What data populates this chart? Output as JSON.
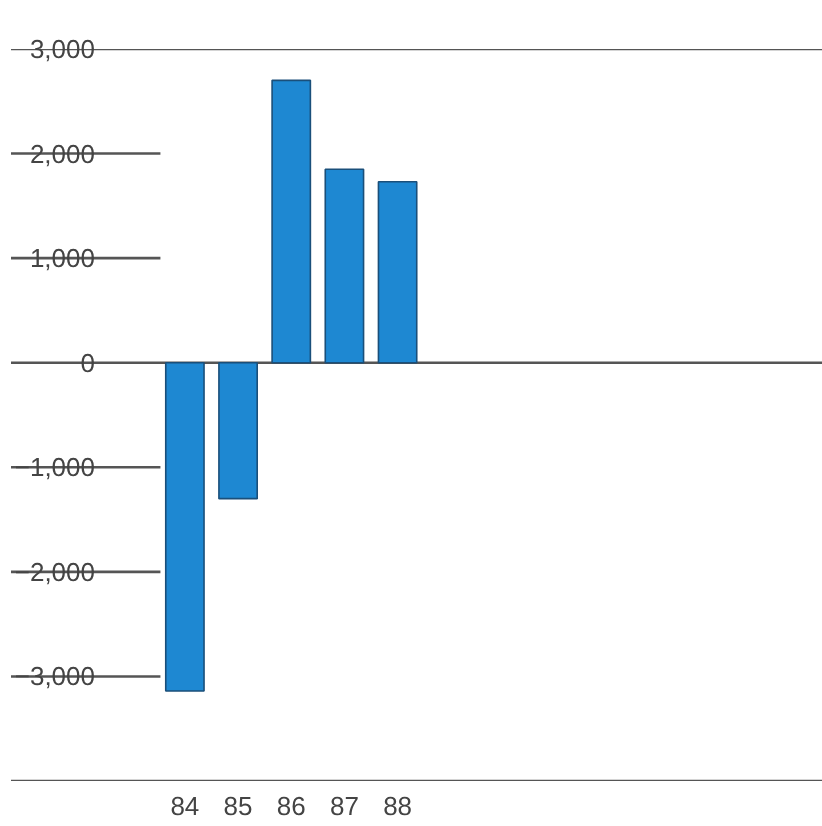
{
  "chart_data": {
    "type": "bar",
    "categories": [
      "84",
      "85",
      "86",
      "87",
      "88"
    ],
    "values": [
      -3140,
      -1300,
      2700,
      1850,
      1730
    ],
    "color": "#1e88d2",
    "ylim": [
      -4000,
      3000
    ],
    "yticks": [
      {
        "value": -4000,
        "label": null
      },
      {
        "value": -3000,
        "label": "−3,000"
      },
      {
        "value": -2000,
        "label": "−2,000"
      },
      {
        "value": -1000,
        "label": "−1,000"
      },
      {
        "value": 0,
        "label": "0"
      },
      {
        "value": 1000,
        "label": "1,000"
      },
      {
        "value": 2000,
        "label": "2,000"
      },
      {
        "value": 3000,
        "label": "3,000"
      }
    ],
    "grid": "y"
  }
}
